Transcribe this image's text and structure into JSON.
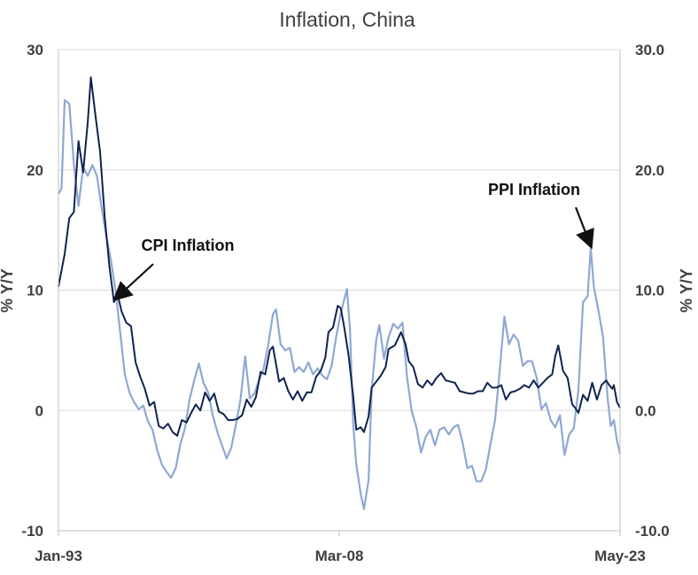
{
  "chart_data": {
    "type": "line",
    "title": "Inflation, China",
    "ylabel_left": "% Y/Y",
    "ylabel_right": "% Y/Y",
    "ylim": [
      -10,
      30
    ],
    "y_ticks_left": [
      "-10",
      "0",
      "10",
      "20",
      "30"
    ],
    "y_ticks_right": [
      "-10.0",
      "0.0",
      "10.0",
      "20.0",
      "30.0"
    ],
    "x_range": [
      "1993-01",
      "2023-05"
    ],
    "x_ticks": [
      {
        "date": "1993-01",
        "label": "Jan-93"
      },
      {
        "date": "2008-03",
        "label": "Mar-08"
      },
      {
        "date": "2023-05",
        "label": "May-23"
      }
    ],
    "grid": "horizontal",
    "legend": "none",
    "series": [
      {
        "name": "CPI Inflation",
        "color": "#0f2350",
        "axis": "left",
        "points": [
          [
            "1993-01",
            10.3
          ],
          [
            "1993-05",
            13.0
          ],
          [
            "1993-08",
            16.0
          ],
          [
            "1993-11",
            16.5
          ],
          [
            "1994-02",
            22.4
          ],
          [
            "1994-05",
            19.8
          ],
          [
            "1994-08",
            24.0
          ],
          [
            "1994-10",
            27.7
          ],
          [
            "1995-01",
            24.5
          ],
          [
            "1995-04",
            21.5
          ],
          [
            "1995-07",
            16.0
          ],
          [
            "1995-10",
            12.0
          ],
          [
            "1996-01",
            9.0
          ],
          [
            "1996-03",
            9.8
          ],
          [
            "1996-06",
            8.2
          ],
          [
            "1996-09",
            7.3
          ],
          [
            "1996-12",
            7.0
          ],
          [
            "1997-03",
            4.0
          ],
          [
            "1997-06",
            2.8
          ],
          [
            "1997-09",
            1.8
          ],
          [
            "1997-12",
            0.4
          ],
          [
            "1998-03",
            0.7
          ],
          [
            "1998-06",
            -1.3
          ],
          [
            "1998-09",
            -1.5
          ],
          [
            "1998-12",
            -1.1
          ],
          [
            "1999-03",
            -1.8
          ],
          [
            "1999-06",
            -2.1
          ],
          [
            "1999-09",
            -0.8
          ],
          [
            "1999-12",
            -1.0
          ],
          [
            "2000-03",
            -0.2
          ],
          [
            "2000-06",
            0.5
          ],
          [
            "2000-09",
            0.0
          ],
          [
            "2000-12",
            1.5
          ],
          [
            "2001-03",
            0.8
          ],
          [
            "2001-06",
            1.4
          ],
          [
            "2001-09",
            -0.1
          ],
          [
            "2001-12",
            -0.3
          ],
          [
            "2002-03",
            -0.8
          ],
          [
            "2002-06",
            -0.8
          ],
          [
            "2002-09",
            -0.7
          ],
          [
            "2002-12",
            -0.4
          ],
          [
            "2003-03",
            0.9
          ],
          [
            "2003-06",
            0.3
          ],
          [
            "2003-09",
            1.1
          ],
          [
            "2003-12",
            3.2
          ],
          [
            "2004-03",
            3.0
          ],
          [
            "2004-06",
            5.0
          ],
          [
            "2004-08",
            5.3
          ],
          [
            "2004-12",
            2.4
          ],
          [
            "2005-03",
            2.7
          ],
          [
            "2005-06",
            1.6
          ],
          [
            "2005-09",
            0.9
          ],
          [
            "2005-12",
            1.6
          ],
          [
            "2006-03",
            0.8
          ],
          [
            "2006-06",
            1.5
          ],
          [
            "2006-09",
            1.5
          ],
          [
            "2006-12",
            2.8
          ],
          [
            "2007-03",
            3.3
          ],
          [
            "2007-06",
            4.4
          ],
          [
            "2007-08",
            6.5
          ],
          [
            "2007-11",
            6.9
          ],
          [
            "2008-02",
            8.7
          ],
          [
            "2008-04",
            8.5
          ],
          [
            "2008-06",
            7.1
          ],
          [
            "2008-09",
            4.6
          ],
          [
            "2008-12",
            1.2
          ],
          [
            "2009-02",
            -1.6
          ],
          [
            "2009-05",
            -1.4
          ],
          [
            "2009-07",
            -1.8
          ],
          [
            "2009-10",
            -0.5
          ],
          [
            "2009-12",
            1.9
          ],
          [
            "2010-03",
            2.4
          ],
          [
            "2010-06",
            2.9
          ],
          [
            "2010-09",
            3.6
          ],
          [
            "2010-11",
            5.1
          ],
          [
            "2011-03",
            5.4
          ],
          [
            "2011-07",
            6.5
          ],
          [
            "2011-10",
            5.5
          ],
          [
            "2011-12",
            4.1
          ],
          [
            "2012-03",
            3.6
          ],
          [
            "2012-06",
            2.2
          ],
          [
            "2012-09",
            1.9
          ],
          [
            "2012-12",
            2.5
          ],
          [
            "2013-03",
            2.1
          ],
          [
            "2013-06",
            2.7
          ],
          [
            "2013-09",
            3.1
          ],
          [
            "2013-12",
            2.5
          ],
          [
            "2014-03",
            2.4
          ],
          [
            "2014-06",
            2.3
          ],
          [
            "2014-09",
            1.6
          ],
          [
            "2014-12",
            1.5
          ],
          [
            "2015-03",
            1.4
          ],
          [
            "2015-06",
            1.4
          ],
          [
            "2015-09",
            1.6
          ],
          [
            "2015-12",
            1.6
          ],
          [
            "2016-03",
            2.3
          ],
          [
            "2016-06",
            1.9
          ],
          [
            "2016-09",
            1.9
          ],
          [
            "2016-12",
            2.1
          ],
          [
            "2017-03",
            0.9
          ],
          [
            "2017-06",
            1.5
          ],
          [
            "2017-09",
            1.6
          ],
          [
            "2017-12",
            1.8
          ],
          [
            "2018-03",
            2.1
          ],
          [
            "2018-06",
            1.9
          ],
          [
            "2018-09",
            2.5
          ],
          [
            "2018-12",
            1.9
          ],
          [
            "2019-03",
            2.3
          ],
          [
            "2019-06",
            2.7
          ],
          [
            "2019-09",
            3.0
          ],
          [
            "2019-11",
            4.5
          ],
          [
            "2020-01",
            5.4
          ],
          [
            "2020-04",
            3.3
          ],
          [
            "2020-07",
            2.7
          ],
          [
            "2020-10",
            0.5
          ],
          [
            "2020-12",
            0.2
          ],
          [
            "2021-02",
            -0.2
          ],
          [
            "2021-05",
            1.3
          ],
          [
            "2021-08",
            0.8
          ],
          [
            "2021-11",
            2.3
          ],
          [
            "2022-02",
            0.9
          ],
          [
            "2022-05",
            2.1
          ],
          [
            "2022-08",
            2.5
          ],
          [
            "2022-10",
            2.1
          ],
          [
            "2022-12",
            1.8
          ],
          [
            "2023-01",
            2.1
          ],
          [
            "2023-03",
            0.7
          ],
          [
            "2023-05",
            0.2
          ]
        ]
      },
      {
        "name": "PPI Inflation",
        "color": "#8fa8d2",
        "axis": "right",
        "points": [
          [
            "1993-01",
            18.0
          ],
          [
            "1993-03",
            18.5
          ],
          [
            "1993-05",
            25.8
          ],
          [
            "1993-08",
            25.5
          ],
          [
            "1993-11",
            20.5
          ],
          [
            "1994-02",
            17.0
          ],
          [
            "1994-05",
            20.2
          ],
          [
            "1994-08",
            19.5
          ],
          [
            "1994-11",
            20.4
          ],
          [
            "1995-02",
            19.5
          ],
          [
            "1995-05",
            16.8
          ],
          [
            "1995-08",
            14.5
          ],
          [
            "1995-11",
            12.5
          ],
          [
            "1996-02",
            10.0
          ],
          [
            "1996-05",
            6.5
          ],
          [
            "1996-08",
            3.0
          ],
          [
            "1996-11",
            1.5
          ],
          [
            "1997-02",
            0.7
          ],
          [
            "1997-05",
            0.1
          ],
          [
            "1997-08",
            0.4
          ],
          [
            "1997-11",
            -0.9
          ],
          [
            "1998-02",
            -1.6
          ],
          [
            "1998-05",
            -3.3
          ],
          [
            "1998-08",
            -4.5
          ],
          [
            "1998-11",
            -5.1
          ],
          [
            "1999-02",
            -5.6
          ],
          [
            "1999-05",
            -4.8
          ],
          [
            "1999-08",
            -2.8
          ],
          [
            "1999-11",
            -1.5
          ],
          [
            "2000-02",
            0.9
          ],
          [
            "2000-05",
            2.5
          ],
          [
            "2000-08",
            3.9
          ],
          [
            "2000-11",
            2.3
          ],
          [
            "2001-02",
            1.5
          ],
          [
            "2001-05",
            -0.4
          ],
          [
            "2001-08",
            -1.8
          ],
          [
            "2001-11",
            -2.9
          ],
          [
            "2002-02",
            -4.0
          ],
          [
            "2002-05",
            -3.1
          ],
          [
            "2002-08",
            -1.2
          ],
          [
            "2002-11",
            0.9
          ],
          [
            "2003-02",
            4.5
          ],
          [
            "2003-05",
            1.0
          ],
          [
            "2003-08",
            1.4
          ],
          [
            "2003-11",
            2.5
          ],
          [
            "2004-02",
            3.5
          ],
          [
            "2004-05",
            5.5
          ],
          [
            "2004-08",
            8.0
          ],
          [
            "2004-10",
            8.4
          ],
          [
            "2005-01",
            5.5
          ],
          [
            "2005-04",
            5.0
          ],
          [
            "2005-07",
            5.2
          ],
          [
            "2005-10",
            3.2
          ],
          [
            "2006-01",
            3.6
          ],
          [
            "2006-04",
            3.2
          ],
          [
            "2006-07",
            4.0
          ],
          [
            "2006-10",
            3.0
          ],
          [
            "2007-01",
            3.5
          ],
          [
            "2007-04",
            2.9
          ],
          [
            "2007-07",
            2.6
          ],
          [
            "2007-10",
            3.7
          ],
          [
            "2008-01",
            6.1
          ],
          [
            "2008-04",
            8.1
          ],
          [
            "2008-08",
            10.1
          ],
          [
            "2008-10",
            6.6
          ],
          [
            "2008-12",
            -1.1
          ],
          [
            "2009-02",
            -4.5
          ],
          [
            "2009-05",
            -7.0
          ],
          [
            "2009-07",
            -8.2
          ],
          [
            "2009-10",
            -5.8
          ],
          [
            "2009-12",
            1.7
          ],
          [
            "2010-03",
            5.9
          ],
          [
            "2010-05",
            7.1
          ],
          [
            "2010-08",
            4.3
          ],
          [
            "2010-11",
            6.1
          ],
          [
            "2011-02",
            7.2
          ],
          [
            "2011-05",
            6.8
          ],
          [
            "2011-08",
            7.3
          ],
          [
            "2011-11",
            2.7
          ],
          [
            "2012-02",
            -0.1
          ],
          [
            "2012-05",
            -1.4
          ],
          [
            "2012-08",
            -3.5
          ],
          [
            "2012-11",
            -2.2
          ],
          [
            "2013-02",
            -1.6
          ],
          [
            "2013-05",
            -2.9
          ],
          [
            "2013-08",
            -1.6
          ],
          [
            "2013-11",
            -1.4
          ],
          [
            "2014-02",
            -2.0
          ],
          [
            "2014-05",
            -1.4
          ],
          [
            "2014-08",
            -1.2
          ],
          [
            "2014-11",
            -2.7
          ],
          [
            "2015-02",
            -4.8
          ],
          [
            "2015-05",
            -4.6
          ],
          [
            "2015-08",
            -5.9
          ],
          [
            "2015-11",
            -5.9
          ],
          [
            "2016-02",
            -4.9
          ],
          [
            "2016-05",
            -2.8
          ],
          [
            "2016-08",
            -0.8
          ],
          [
            "2016-11",
            3.3
          ],
          [
            "2017-02",
            7.8
          ],
          [
            "2017-05",
            5.5
          ],
          [
            "2017-08",
            6.3
          ],
          [
            "2017-11",
            5.8
          ],
          [
            "2018-02",
            3.7
          ],
          [
            "2018-05",
            4.1
          ],
          [
            "2018-08",
            4.1
          ],
          [
            "2018-11",
            2.7
          ],
          [
            "2019-02",
            0.1
          ],
          [
            "2019-05",
            0.6
          ],
          [
            "2019-08",
            -0.8
          ],
          [
            "2019-11",
            -1.4
          ],
          [
            "2020-02",
            -0.4
          ],
          [
            "2020-05",
            -3.7
          ],
          [
            "2020-08",
            -2.0
          ],
          [
            "2020-11",
            -1.5
          ],
          [
            "2021-02",
            1.7
          ],
          [
            "2021-05",
            9.0
          ],
          [
            "2021-08",
            9.5
          ],
          [
            "2021-10",
            13.5
          ],
          [
            "2021-12",
            10.3
          ],
          [
            "2022-03",
            8.3
          ],
          [
            "2022-06",
            6.1
          ],
          [
            "2022-09",
            0.9
          ],
          [
            "2022-11",
            -1.3
          ],
          [
            "2023-01",
            -0.8
          ],
          [
            "2023-03",
            -2.5
          ],
          [
            "2023-05",
            -3.6
          ]
        ]
      }
    ],
    "annotations": [
      {
        "text": "CPI Inflation",
        "series": "CPI Inflation",
        "points_to": [
          "1996-02",
          9.3
        ]
      },
      {
        "text": "PPI Inflation",
        "series": "PPI Inflation",
        "points_to": [
          "2021-10",
          13.7
        ]
      }
    ]
  }
}
